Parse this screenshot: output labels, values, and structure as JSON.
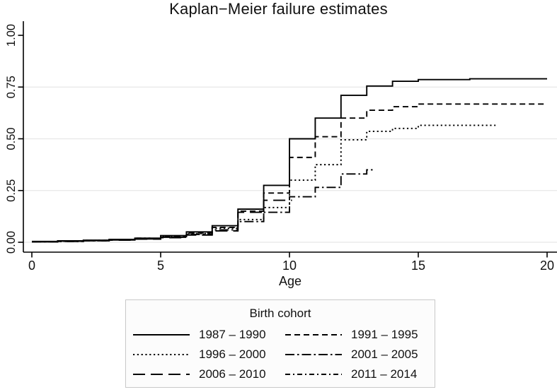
{
  "title": "Kaplan−Meier failure estimates",
  "axes": {
    "x": {
      "label": "Age",
      "tick_labels": [
        "0",
        "5",
        "10",
        "15",
        "20"
      ],
      "tick_values": [
        0,
        5,
        10,
        15,
        20
      ],
      "range": [
        0,
        20
      ]
    },
    "y": {
      "label": "",
      "tick_labels": [
        "0.00",
        "0.25",
        "0.50",
        "0.75",
        "1.00"
      ],
      "tick_values": [
        0,
        0.25,
        0.5,
        0.75,
        1
      ],
      "gridline_values": [
        0,
        0.25,
        0.5,
        0.75
      ],
      "range": [
        0,
        1
      ]
    }
  },
  "legend": {
    "title": "Birth cohort",
    "items": [
      {
        "label": "1987 – 1990",
        "style": "solid"
      },
      {
        "label": "1991 – 1995",
        "style": "dash"
      },
      {
        "label": "1996 – 2000",
        "style": "dot"
      },
      {
        "label": "2001 – 2005",
        "style": "dash-dot"
      },
      {
        "label": "2006 – 2010",
        "style": "long-dash"
      },
      {
        "label": "2011 – 2014",
        "style": "short-dash-dot"
      }
    ]
  },
  "styles": {
    "solid": "",
    "dash": "8 5",
    "dot": "2.2 3.6",
    "dash-dot": "13 4 2.5 4",
    "long-dash": "17 8",
    "short-dash-dot": "7 4 2 4"
  },
  "colors": {
    "line": "#000000",
    "grid": "#e7e7e7",
    "axis": "#000000",
    "text": "#111111",
    "legend_border": "#c8c8c8",
    "legend_bg": "#fcfcfc"
  },
  "chart_data": {
    "type": "line",
    "subtype": "step-failure-curve",
    "title": "Kaplan−Meier failure estimates",
    "xlabel": "Age",
    "ylabel": "",
    "xlim": [
      0,
      20
    ],
    "ylim": [
      0,
      1
    ],
    "grid": "horizontal",
    "legend_position": "bottom",
    "series": [
      {
        "name": "1987 – 1990",
        "style": "solid",
        "end_x": 20,
        "points": [
          [
            0,
            0.004
          ],
          [
            1,
            0.007
          ],
          [
            2,
            0.01
          ],
          [
            3,
            0.014
          ],
          [
            4,
            0.02
          ],
          [
            5,
            0.032
          ],
          [
            6,
            0.05
          ],
          [
            7,
            0.08
          ],
          [
            8,
            0.16
          ],
          [
            9,
            0.275
          ],
          [
            10,
            0.5
          ],
          [
            11,
            0.6
          ],
          [
            12,
            0.71
          ],
          [
            13,
            0.755
          ],
          [
            14,
            0.778
          ],
          [
            15,
            0.786
          ],
          [
            17,
            0.79
          ]
        ]
      },
      {
        "name": "1991 – 1995",
        "style": "dash",
        "end_x": 20,
        "points": [
          [
            0,
            0.003
          ],
          [
            1,
            0.006
          ],
          [
            2,
            0.009
          ],
          [
            3,
            0.013
          ],
          [
            4,
            0.018
          ],
          [
            5,
            0.028
          ],
          [
            6,
            0.045
          ],
          [
            7,
            0.072
          ],
          [
            8,
            0.15
          ],
          [
            9,
            0.238
          ],
          [
            10,
            0.41
          ],
          [
            11,
            0.51
          ],
          [
            12,
            0.6
          ],
          [
            13,
            0.638
          ],
          [
            14,
            0.655
          ],
          [
            15,
            0.668
          ]
        ]
      },
      {
        "name": "1996 – 2000",
        "style": "dot",
        "end_x": 18,
        "points": [
          [
            0,
            0.003
          ],
          [
            1,
            0.005
          ],
          [
            2,
            0.008
          ],
          [
            3,
            0.012
          ],
          [
            4,
            0.017
          ],
          [
            5,
            0.026
          ],
          [
            6,
            0.042
          ],
          [
            7,
            0.068
          ],
          [
            8,
            0.11
          ],
          [
            9,
            0.168
          ],
          [
            10,
            0.3
          ],
          [
            11,
            0.375
          ],
          [
            12,
            0.495
          ],
          [
            13,
            0.536
          ],
          [
            14,
            0.55
          ],
          [
            15,
            0.565
          ]
        ]
      },
      {
        "name": "2001 – 2005",
        "style": "dash-dot",
        "end_x": 13.3,
        "points": [
          [
            0,
            0.002
          ],
          [
            1,
            0.004
          ],
          [
            2,
            0.007
          ],
          [
            3,
            0.011
          ],
          [
            4,
            0.016
          ],
          [
            5,
            0.024
          ],
          [
            6,
            0.038
          ],
          [
            7,
            0.06
          ],
          [
            8,
            0.1
          ],
          [
            9,
            0.145
          ],
          [
            10,
            0.22
          ],
          [
            11,
            0.265
          ],
          [
            12,
            0.33
          ],
          [
            13,
            0.35
          ]
        ]
      },
      {
        "name": "2006 – 2010",
        "style": "long-dash",
        "end_x": 10.1,
        "points": [
          [
            0,
            0.002
          ],
          [
            1,
            0.004
          ],
          [
            2,
            0.007
          ],
          [
            3,
            0.01
          ],
          [
            4,
            0.015
          ],
          [
            5,
            0.022
          ],
          [
            6,
            0.035
          ],
          [
            7,
            0.055
          ],
          [
            8,
            0.145
          ],
          [
            9,
            0.203
          ]
        ]
      },
      {
        "name": "2011 – 2014",
        "style": "short-dash-dot",
        "end_x": 4.6,
        "points": [
          [
            0,
            0.002
          ],
          [
            1,
            0.005
          ],
          [
            2,
            0.009
          ],
          [
            3,
            0.014
          ],
          [
            4,
            0.02
          ]
        ]
      }
    ]
  }
}
